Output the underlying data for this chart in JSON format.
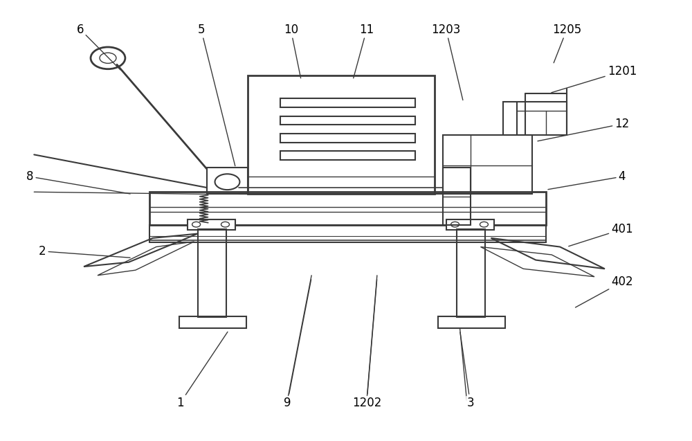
{
  "line_color": "#3a3a3a",
  "annotations": [
    {
      "label": "6",
      "txy": [
        0.115,
        0.935
      ],
      "axy": [
        0.175,
        0.84
      ]
    },
    {
      "label": "5",
      "txy": [
        0.29,
        0.935
      ],
      "axy": [
        0.34,
        0.62
      ]
    },
    {
      "label": "10",
      "txy": [
        0.42,
        0.935
      ],
      "axy": [
        0.435,
        0.82
      ]
    },
    {
      "label": "11",
      "txy": [
        0.53,
        0.935
      ],
      "axy": [
        0.51,
        0.82
      ]
    },
    {
      "label": "1203",
      "txy": [
        0.645,
        0.935
      ],
      "axy": [
        0.67,
        0.77
      ]
    },
    {
      "label": "1205",
      "txy": [
        0.82,
        0.935
      ],
      "axy": [
        0.8,
        0.855
      ]
    },
    {
      "label": "1201",
      "txy": [
        0.9,
        0.84
      ],
      "axy": [
        0.795,
        0.79
      ]
    },
    {
      "label": "12",
      "txy": [
        0.9,
        0.72
      ],
      "axy": [
        0.775,
        0.68
      ]
    },
    {
      "label": "4",
      "txy": [
        0.9,
        0.6
      ],
      "axy": [
        0.79,
        0.57
      ]
    },
    {
      "label": "401",
      "txy": [
        0.9,
        0.48
      ],
      "axy": [
        0.82,
        0.44
      ]
    },
    {
      "label": "402",
      "txy": [
        0.9,
        0.36
      ],
      "axy": [
        0.83,
        0.3
      ]
    },
    {
      "label": "8",
      "txy": [
        0.042,
        0.6
      ],
      "axy": [
        0.19,
        0.56
      ]
    },
    {
      "label": "2",
      "txy": [
        0.06,
        0.43
      ],
      "axy": [
        0.19,
        0.415
      ]
    },
    {
      "label": "1",
      "txy": [
        0.26,
        0.085
      ],
      "axy": [
        0.33,
        0.25
      ]
    },
    {
      "label": "9",
      "txy": [
        0.415,
        0.085
      ],
      "axy": [
        0.45,
        0.37
      ]
    },
    {
      "label": "1202",
      "txy": [
        0.53,
        0.085
      ],
      "axy": [
        0.545,
        0.37
      ]
    },
    {
      "label": "3",
      "txy": [
        0.68,
        0.085
      ],
      "axy": [
        0.665,
        0.25
      ]
    }
  ]
}
